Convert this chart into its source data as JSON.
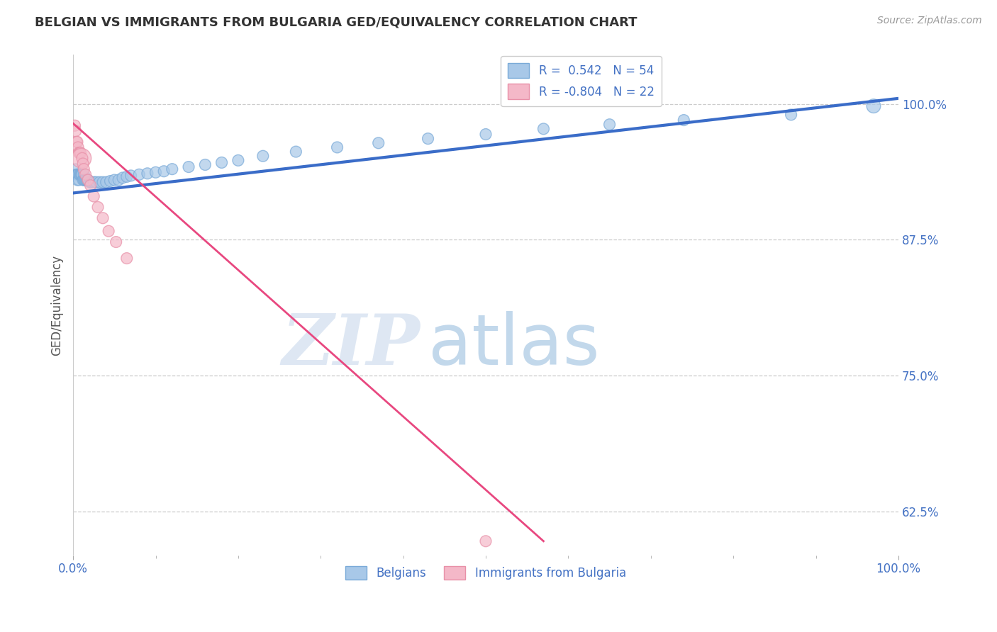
{
  "title": "BELGIAN VS IMMIGRANTS FROM BULGARIA GED/EQUIVALENCY CORRELATION CHART",
  "source": "Source: ZipAtlas.com",
  "ylabel": "GED/Equivalency",
  "xlim": [
    0.0,
    1.0
  ],
  "ylim": [
    0.585,
    1.045
  ],
  "yticks": [
    0.625,
    0.75,
    0.875,
    1.0
  ],
  "ytick_labels": [
    "62.5%",
    "75.0%",
    "87.5%",
    "100.0%"
  ],
  "xticks": [
    0.0,
    1.0
  ],
  "xtick_labels": [
    "0.0%",
    "100.0%"
  ],
  "belgian_R": 0.542,
  "belgian_N": 54,
  "bulgaria_R": -0.804,
  "bulgaria_N": 22,
  "belgian_color": "#a8c8e8",
  "bulgarian_color": "#f4b8c8",
  "belgian_line_color": "#3a6cc8",
  "bulgarian_line_color": "#e84880",
  "watermark_zip": "ZIP",
  "watermark_atlas": "atlas",
  "legend_belgian_label": "Belgians",
  "legend_bulgarian_label": "Immigrants from Bulgaria",
  "belgian_x": [
    0.002,
    0.003,
    0.004,
    0.005,
    0.005,
    0.006,
    0.007,
    0.008,
    0.008,
    0.009,
    0.01,
    0.01,
    0.011,
    0.012,
    0.013,
    0.013,
    0.014,
    0.015,
    0.016,
    0.017,
    0.018,
    0.02,
    0.022,
    0.025,
    0.028,
    0.032,
    0.036,
    0.04,
    0.045,
    0.05,
    0.055,
    0.06,
    0.065,
    0.07,
    0.08,
    0.09,
    0.1,
    0.11,
    0.12,
    0.14,
    0.16,
    0.18,
    0.2,
    0.23,
    0.27,
    0.32,
    0.37,
    0.43,
    0.5,
    0.57,
    0.65,
    0.74,
    0.87,
    0.97
  ],
  "belgian_y": [
    0.935,
    0.94,
    0.935,
    0.935,
    0.93,
    0.935,
    0.93,
    0.935,
    0.935,
    0.935,
    0.935,
    0.935,
    0.935,
    0.93,
    0.935,
    0.93,
    0.93,
    0.93,
    0.93,
    0.93,
    0.93,
    0.928,
    0.928,
    0.928,
    0.928,
    0.928,
    0.928,
    0.928,
    0.929,
    0.93,
    0.93,
    0.932,
    0.933,
    0.934,
    0.935,
    0.936,
    0.937,
    0.938,
    0.94,
    0.942,
    0.944,
    0.946,
    0.948,
    0.952,
    0.956,
    0.96,
    0.964,
    0.968,
    0.972,
    0.977,
    0.981,
    0.985,
    0.99,
    0.998
  ],
  "belgian_sizes": [
    120,
    120,
    120,
    130,
    130,
    130,
    130,
    130,
    130,
    130,
    130,
    130,
    130,
    130,
    130,
    130,
    130,
    130,
    130,
    130,
    130,
    130,
    130,
    130,
    130,
    130,
    130,
    130,
    130,
    130,
    130,
    130,
    130,
    130,
    130,
    130,
    130,
    130,
    130,
    130,
    130,
    130,
    130,
    130,
    130,
    130,
    130,
    130,
    130,
    130,
    130,
    130,
    130,
    200
  ],
  "bulgarian_x": [
    0.002,
    0.003,
    0.004,
    0.005,
    0.006,
    0.007,
    0.008,
    0.009,
    0.01,
    0.011,
    0.012,
    0.013,
    0.015,
    0.018,
    0.021,
    0.025,
    0.03,
    0.036,
    0.043,
    0.052,
    0.065,
    0.5
  ],
  "bulgarian_y": [
    0.98,
    0.975,
    0.965,
    0.965,
    0.96,
    0.955,
    0.955,
    0.955,
    0.95,
    0.95,
    0.945,
    0.94,
    0.935,
    0.93,
    0.925,
    0.915,
    0.905,
    0.895,
    0.883,
    0.873,
    0.858,
    0.598
  ],
  "bulgarian_sizes": [
    130,
    130,
    130,
    130,
    130,
    130,
    130,
    130,
    400,
    130,
    130,
    130,
    130,
    130,
    130,
    130,
    130,
    130,
    130,
    130,
    130,
    130
  ],
  "blue_line_x0": 0.0,
  "blue_line_y0": 0.918,
  "blue_line_x1": 1.0,
  "blue_line_y1": 1.005,
  "pink_line_x0": 0.0,
  "pink_line_y0": 0.982,
  "pink_line_x1": 0.57,
  "pink_line_y1": 0.598
}
